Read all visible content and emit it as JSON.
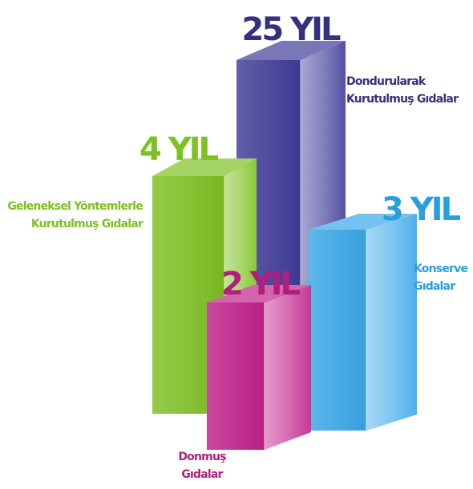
{
  "chart_data": {
    "type": "bar",
    "style": "3d",
    "categories": [
      "Geleneksel Yöntemlerle Kurutulmuş Gıdalar",
      "Dondurularak Kurutulmuş Gıdalar",
      "Donmuş Gıdalar",
      "Konserve Gıdalar"
    ],
    "category_lines": [
      [
        "Geleneksel Yöntemlerle",
        "Kurutulmuş Gıdalar"
      ],
      [
        "Dondurularak",
        "Kurutulmuş Gıdalar"
      ],
      [
        "Donmuş",
        "Gıdalar"
      ],
      [
        "Konserve",
        "Gıdalar"
      ]
    ],
    "values": [
      4,
      25,
      2,
      3
    ],
    "value_labels": [
      "4 YIL",
      "25 YIL",
      "2 YIL",
      "3 YIL"
    ],
    "unit": "YIL",
    "colors": [
      "#7dc122",
      "#3f3c98",
      "#c0218a",
      "#3aa7e8"
    ],
    "label_colors": [
      "#7dc122",
      "#35317f",
      "#b01f7d",
      "#2a9fe0"
    ]
  }
}
